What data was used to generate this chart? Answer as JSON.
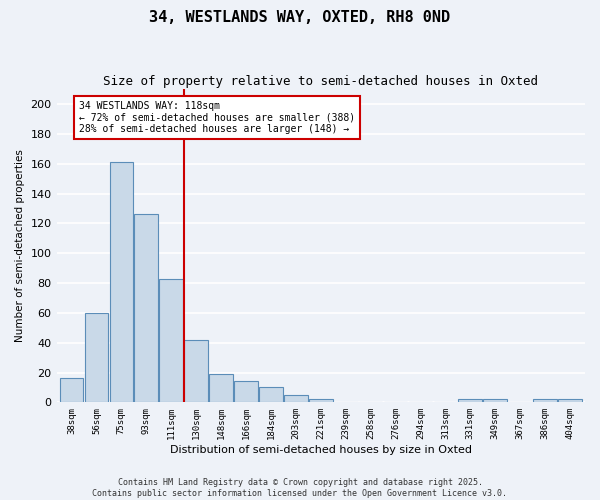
{
  "title": "34, WESTLANDS WAY, OXTED, RH8 0ND",
  "subtitle": "Size of property relative to semi-detached houses in Oxted",
  "xlabel": "Distribution of semi-detached houses by size in Oxted",
  "ylabel": "Number of semi-detached properties",
  "bin_labels": [
    "38sqm",
    "56sqm",
    "75sqm",
    "93sqm",
    "111sqm",
    "130sqm",
    "148sqm",
    "166sqm",
    "184sqm",
    "203sqm",
    "221sqm",
    "239sqm",
    "258sqm",
    "276sqm",
    "294sqm",
    "313sqm",
    "331sqm",
    "349sqm",
    "367sqm",
    "386sqm",
    "404sqm"
  ],
  "bin_values": [
    16,
    60,
    161,
    126,
    83,
    42,
    19,
    14,
    10,
    5,
    2,
    0,
    0,
    0,
    0,
    0,
    2,
    2,
    0,
    2,
    2
  ],
  "bar_color": "#c9d9e8",
  "bar_edge_color": "#5b8db8",
  "vline_pos": 4.5,
  "vline_color": "#cc0000",
  "annotation_text": "34 WESTLANDS WAY: 118sqm\n← 72% of semi-detached houses are smaller (388)\n28% of semi-detached houses are larger (148) →",
  "annotation_box_color": "#ffffff",
  "annotation_box_edge": "#cc0000",
  "footer_text": "Contains HM Land Registry data © Crown copyright and database right 2025.\nContains public sector information licensed under the Open Government Licence v3.0.",
  "ylim": [
    0,
    210
  ],
  "yticks": [
    0,
    20,
    40,
    60,
    80,
    100,
    120,
    140,
    160,
    180,
    200
  ],
  "background_color": "#eef2f8",
  "grid_color": "#ffffff",
  "title_fontsize": 11,
  "subtitle_fontsize": 9,
  "footer_fontsize": 6
}
